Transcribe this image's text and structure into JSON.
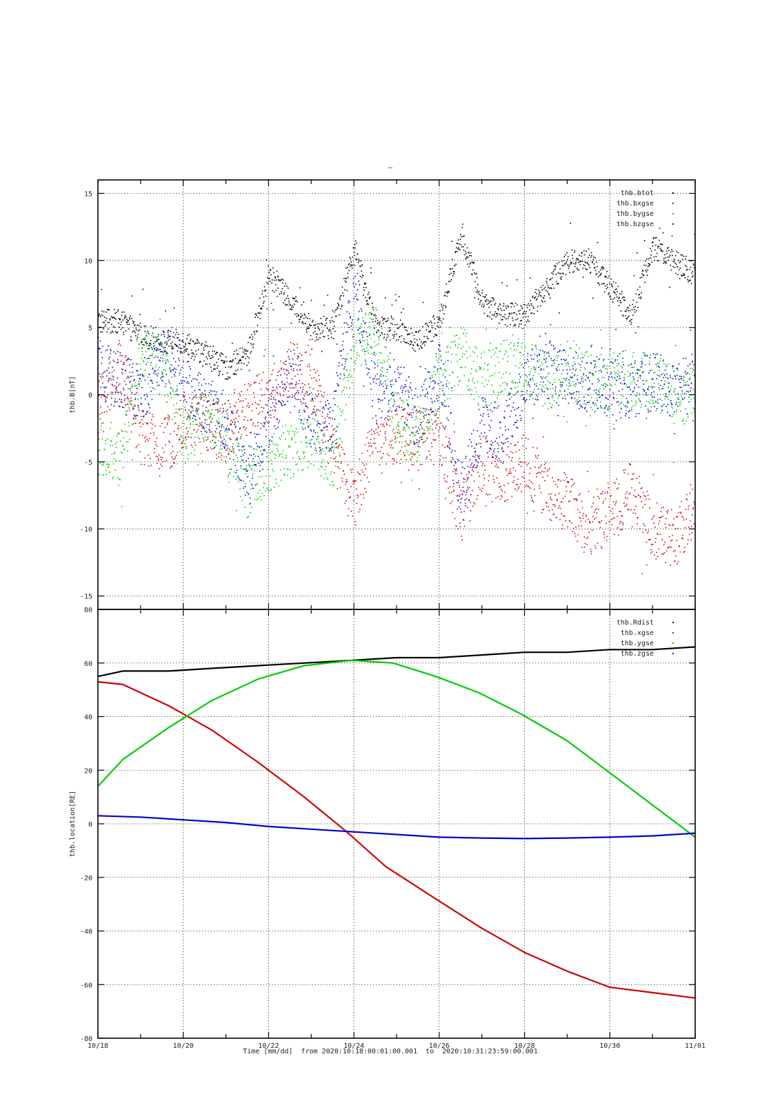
{
  "page": {
    "title_mark": "–"
  },
  "colors": {
    "black": "#000000",
    "red": "#cc0000",
    "green": "#00cc00",
    "blue": "#0000cc"
  },
  "chart_data": [
    {
      "type": "scatter",
      "ylabel": "thb.B[nT]",
      "ylim": [
        -16,
        16
      ],
      "yticks": [
        -15,
        -10,
        -5,
        0,
        5,
        10,
        15
      ],
      "x_domain": [
        "2020-10-18",
        "2020-11-01"
      ],
      "grid": true,
      "legend_position": "top-right",
      "series": [
        {
          "name": "thb.btot",
          "color": "#000000",
          "x": [
            "2020-10-18",
            "2020-10-18T12:00",
            "2020-10-19",
            "2020-10-19T12:00",
            "2020-10-20",
            "2020-10-20T12:00",
            "2020-10-21",
            "2020-10-21T12:00",
            "2020-10-22",
            "2020-10-22T12:00",
            "2020-10-23",
            "2020-10-23T12:00",
            "2020-10-24",
            "2020-10-24T12:00",
            "2020-10-25",
            "2020-10-25T12:00",
            "2020-10-26",
            "2020-10-26T12:00",
            "2020-10-27",
            "2020-10-27T12:00",
            "2020-10-28",
            "2020-10-28T12:00",
            "2020-10-29",
            "2020-10-29T12:00",
            "2020-10-30",
            "2020-10-30T12:00",
            "2020-10-31",
            "2020-10-31T12:00",
            "2020-11-01"
          ],
          "y": [
            5.5,
            5.5,
            4.5,
            4,
            4,
            3,
            2,
            3,
            9,
            7,
            5,
            5,
            11,
            5,
            5,
            4,
            5.5,
            12,
            7,
            6,
            6,
            8,
            10,
            10,
            8,
            6,
            11,
            10,
            9
          ]
        },
        {
          "name": "thb.bxgse",
          "color": "#cc0000",
          "x": [
            "2020-10-18",
            "2020-10-18T12:00",
            "2020-10-19",
            "2020-10-19T12:00",
            "2020-10-20",
            "2020-10-20T12:00",
            "2020-10-21",
            "2020-10-21T12:00",
            "2020-10-22",
            "2020-10-22T12:00",
            "2020-10-23",
            "2020-10-23T12:00",
            "2020-10-24",
            "2020-10-24T12:00",
            "2020-10-25",
            "2020-10-25T12:00",
            "2020-10-26",
            "2020-10-26T12:00",
            "2020-10-27",
            "2020-10-27T12:00",
            "2020-10-28",
            "2020-10-28T12:00",
            "2020-10-29",
            "2020-10-29T12:00",
            "2020-10-30",
            "2020-10-30T12:00",
            "2020-10-31",
            "2020-10-31T12:00",
            "2020-11-01"
          ],
          "y": [
            -1,
            2,
            -3,
            -4,
            -2,
            -2,
            -3,
            -1,
            0,
            2,
            1,
            -4,
            -8,
            -3,
            -3,
            -3,
            -3,
            -9,
            -5,
            -6,
            -5,
            -7,
            -8,
            -10,
            -9,
            -7,
            -10,
            -11,
            -8
          ]
        },
        {
          "name": "thb.bygse",
          "color": "#00cc00",
          "x": [
            "2020-10-18",
            "2020-10-18T12:00",
            "2020-10-19",
            "2020-10-19T12:00",
            "2020-10-20",
            "2020-10-20T12:00",
            "2020-10-21",
            "2020-10-21T12:00",
            "2020-10-22",
            "2020-10-22T12:00",
            "2020-10-23",
            "2020-10-23T12:00",
            "2020-10-24",
            "2020-10-24T12:00",
            "2020-10-25",
            "2020-10-25T12:00",
            "2020-10-26",
            "2020-10-26T12:00",
            "2020-10-27",
            "2020-10-27T12:00",
            "2020-10-28",
            "2020-10-28T12:00",
            "2020-10-29",
            "2020-10-29T12:00",
            "2020-10-30",
            "2020-10-30T12:00",
            "2020-10-31",
            "2020-10-31T12:00",
            "2020-11-01"
          ],
          "y": [
            -4,
            -5,
            3,
            2,
            -3,
            -2,
            -3,
            -7,
            -5,
            -4,
            -3,
            -5,
            4,
            5,
            -2,
            -3,
            1,
            3,
            1,
            2,
            2,
            1,
            2,
            1,
            1,
            1,
            1,
            0,
            0
          ]
        },
        {
          "name": "thb.bzgse",
          "color": "#0000cc",
          "x": [
            "2020-10-18",
            "2020-10-18T12:00",
            "2020-10-19",
            "2020-10-19T12:00",
            "2020-10-20",
            "2020-10-20T12:00",
            "2020-10-21",
            "2020-10-21T12:00",
            "2020-10-22",
            "2020-10-22T12:00",
            "2020-10-23",
            "2020-10-23T12:00",
            "2020-10-24",
            "2020-10-24T12:00",
            "2020-10-25",
            "2020-10-25T12:00",
            "2020-10-26",
            "2020-10-26T12:00",
            "2020-10-27",
            "2020-10-27T12:00",
            "2020-10-28",
            "2020-10-28T12:00",
            "2020-10-29",
            "2020-10-29T12:00",
            "2020-10-30",
            "2020-10-30T12:00",
            "2020-10-31",
            "2020-10-31T12:00",
            "2020-11-01"
          ],
          "y": [
            2,
            1,
            0,
            3,
            1,
            -1,
            -2,
            -6,
            -2,
            2,
            -2,
            -2,
            8,
            0,
            1,
            -2,
            2,
            -8,
            -2,
            -3,
            1,
            2,
            1,
            1,
            0.5,
            0.5,
            1,
            0.5,
            1
          ]
        }
      ]
    },
    {
      "type": "line",
      "ylabel": "thb.location[RE]",
      "xlabel": "Time [mm/dd]  from 2020:10:18:00:01:00.001  to  2020:10:31:23:59:00.001",
      "ylim": [
        -80,
        80
      ],
      "yticks": [
        -80,
        -60,
        -40,
        -20,
        0,
        20,
        40,
        60,
        80
      ],
      "xticks": [
        "10/18",
        "10/20",
        "10/22",
        "10/24",
        "10/26",
        "10/28",
        "10/30",
        "11/01"
      ],
      "x_domain": [
        "2020-10-18",
        "2020-11-01"
      ],
      "grid": true,
      "legend_position": "top-right",
      "series": [
        {
          "name": "thb.Rdist",
          "color": "#000000",
          "x": [
            "2020-10-18",
            "2020-10-18T14:00",
            "2020-10-19T16:00",
            "2020-10-20T16:00",
            "2020-10-21T18:00",
            "2020-10-22T20:00",
            "2020-10-23T23:00",
            "2020-10-25",
            "2020-10-26",
            "2020-10-27",
            "2020-10-28",
            "2020-10-29",
            "2020-10-30",
            "2020-10-31",
            "2020-11-01"
          ],
          "y": [
            55,
            57,
            57,
            58,
            59,
            60,
            61,
            62,
            62,
            63,
            64,
            64,
            65,
            65,
            66
          ]
        },
        {
          "name": "thb.xgse",
          "color": "#cc0000",
          "x": [
            "2020-10-18",
            "2020-10-18T14:00",
            "2020-10-19T16:00",
            "2020-10-20T16:00",
            "2020-10-21T18:00",
            "2020-10-22T20:00",
            "2020-10-23T20:00",
            "2020-10-24T18:00",
            "2020-10-25T22:00",
            "2020-10-27",
            "2020-10-28",
            "2020-10-29",
            "2020-10-30",
            "2020-10-31",
            "2020-11-01"
          ],
          "y": [
            53,
            52,
            44,
            35,
            23,
            10,
            -3,
            -16,
            -28,
            -39,
            -48,
            -55,
            -61,
            -63,
            -65
          ]
        },
        {
          "name": "thb.ygse",
          "color": "#00cc00",
          "x": [
            "2020-10-18",
            "2020-10-18T14:00",
            "2020-10-19T16:00",
            "2020-10-20T16:00",
            "2020-10-21T18:00",
            "2020-10-22T20:00",
            "2020-10-23T23:00",
            "2020-10-24T22:00",
            "2020-10-25T22:00",
            "2020-10-26T22:00",
            "2020-10-27T22:00",
            "2020-10-29",
            "2020-10-30",
            "2020-10-31",
            "2020-11-01"
          ],
          "y": [
            14,
            24,
            36,
            46,
            54,
            59,
            61,
            60,
            55,
            49,
            41,
            31,
            19,
            7,
            -5
          ]
        },
        {
          "name": "thb.zgse",
          "color": "#0000cc",
          "x": [
            "2020-10-18",
            "2020-10-19",
            "2020-10-20",
            "2020-10-21",
            "2020-10-22",
            "2020-10-23",
            "2020-10-24",
            "2020-10-25",
            "2020-10-26",
            "2020-10-27",
            "2020-10-28",
            "2020-10-29",
            "2020-10-30",
            "2020-10-31",
            "2020-11-01"
          ],
          "y": [
            3,
            2.5,
            1.5,
            0.5,
            -1,
            -2,
            -3,
            -4,
            -5,
            -5.3,
            -5.5,
            -5.3,
            -5,
            -4.5,
            -3.5
          ]
        }
      ]
    }
  ]
}
